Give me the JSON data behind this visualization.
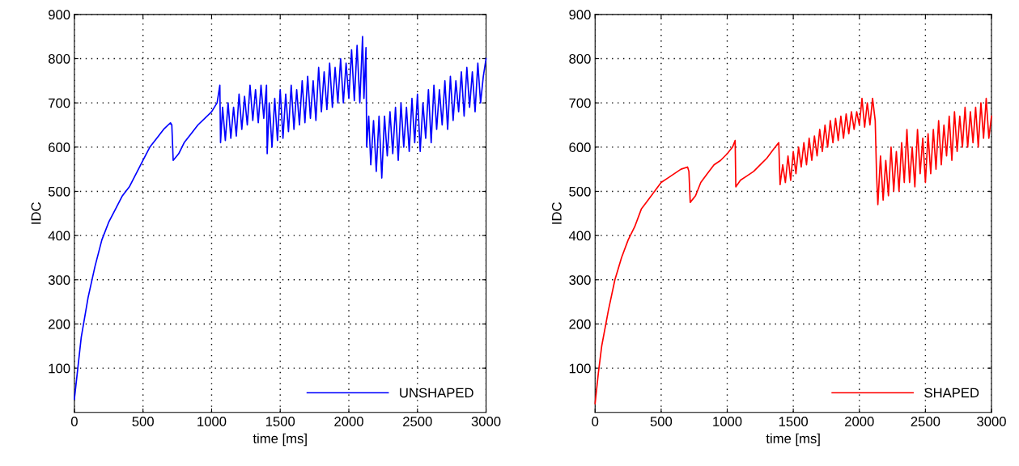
{
  "chart_data": [
    {
      "type": "line",
      "xlabel": "time [ms]",
      "ylabel": "IDC",
      "xlim": [
        0,
        3000
      ],
      "xticks": [
        0,
        500,
        1000,
        1500,
        2000,
        2500,
        3000
      ],
      "ylim": [
        0,
        900
      ],
      "yticks": [
        100,
        200,
        300,
        400,
        500,
        600,
        700,
        800,
        900
      ],
      "grid": true,
      "legend": "bottom right",
      "x": [
        0,
        25,
        50,
        100,
        150,
        200,
        250,
        300,
        350,
        400,
        450,
        500,
        550,
        600,
        650,
        700,
        710,
        720,
        760,
        800,
        850,
        900,
        950,
        1000,
        1040,
        1060,
        1065,
        1080,
        1100,
        1120,
        1140,
        1160,
        1180,
        1200,
        1220,
        1240,
        1260,
        1280,
        1300,
        1320,
        1340,
        1360,
        1380,
        1400,
        1405,
        1420,
        1440,
        1460,
        1480,
        1500,
        1520,
        1540,
        1560,
        1580,
        1600,
        1620,
        1640,
        1660,
        1680,
        1700,
        1720,
        1740,
        1760,
        1780,
        1800,
        1820,
        1840,
        1860,
        1880,
        1900,
        1920,
        1940,
        1960,
        1980,
        2000,
        2020,
        2040,
        2060,
        2080,
        2100,
        2110,
        2125,
        2130,
        2145,
        2160,
        2180,
        2200,
        2220,
        2240,
        2260,
        2280,
        2300,
        2320,
        2340,
        2360,
        2380,
        2400,
        2420,
        2440,
        2460,
        2480,
        2500,
        2520,
        2540,
        2560,
        2580,
        2600,
        2620,
        2640,
        2660,
        2680,
        2700,
        2720,
        2740,
        2760,
        2780,
        2800,
        2820,
        2840,
        2860,
        2880,
        2900,
        2920,
        2940,
        2960,
        2980,
        3000
      ],
      "series": [
        {
          "name": "UNSHAPED",
          "color": "#0000ff",
          "values": [
            30,
            100,
            170,
            260,
            330,
            390,
            430,
            460,
            490,
            510,
            540,
            570,
            600,
            620,
            640,
            655,
            650,
            570,
            585,
            610,
            630,
            650,
            665,
            680,
            700,
            740,
            610,
            690,
            615,
            700,
            620,
            690,
            625,
            720,
            640,
            715,
            650,
            740,
            660,
            730,
            655,
            740,
            665,
            740,
            585,
            700,
            600,
            710,
            615,
            730,
            620,
            720,
            635,
            740,
            640,
            730,
            650,
            750,
            655,
            760,
            665,
            750,
            660,
            780,
            680,
            770,
            685,
            790,
            690,
            780,
            700,
            800,
            700,
            790,
            710,
            820,
            705,
            830,
            700,
            850,
            710,
            825,
            600,
            670,
            560,
            660,
            545,
            670,
            530,
            670,
            580,
            680,
            585,
            690,
            570,
            700,
            600,
            690,
            590,
            710,
            610,
            720,
            590,
            700,
            620,
            730,
            610,
            740,
            640,
            730,
            650,
            750,
            640,
            760,
            660,
            750,
            680,
            770,
            670,
            780,
            690,
            770,
            680,
            790,
            700,
            760,
            800
          ]
        }
      ]
    },
    {
      "type": "line",
      "xlabel": "time [ms]",
      "ylabel": "IDC",
      "xlim": [
        0,
        3000
      ],
      "xticks": [
        0,
        500,
        1000,
        1500,
        2000,
        2500,
        3000
      ],
      "ylim": [
        0,
        900
      ],
      "yticks": [
        100,
        200,
        300,
        400,
        500,
        600,
        700,
        800,
        900
      ],
      "grid": true,
      "legend": "bottom right",
      "x": [
        0,
        25,
        50,
        100,
        150,
        200,
        250,
        300,
        350,
        400,
        450,
        500,
        550,
        600,
        650,
        700,
        710,
        720,
        760,
        800,
        850,
        900,
        950,
        1000,
        1040,
        1060,
        1065,
        1100,
        1150,
        1200,
        1250,
        1300,
        1350,
        1390,
        1400,
        1420,
        1440,
        1460,
        1480,
        1500,
        1520,
        1540,
        1560,
        1580,
        1600,
        1620,
        1640,
        1660,
        1680,
        1700,
        1720,
        1740,
        1760,
        1780,
        1800,
        1820,
        1840,
        1860,
        1880,
        1900,
        1920,
        1940,
        1960,
        1980,
        2000,
        2020,
        2040,
        2060,
        2080,
        2100,
        2120,
        2130,
        2140,
        2160,
        2180,
        2200,
        2220,
        2240,
        2260,
        2280,
        2300,
        2320,
        2340,
        2360,
        2380,
        2400,
        2420,
        2440,
        2460,
        2480,
        2500,
        2520,
        2540,
        2560,
        2580,
        2600,
        2620,
        2640,
        2660,
        2680,
        2700,
        2720,
        2740,
        2760,
        2780,
        2800,
        2820,
        2840,
        2860,
        2880,
        2900,
        2920,
        2940,
        2960,
        2980,
        3000
      ],
      "series": [
        {
          "name": "SHAPED",
          "color": "#ff0000",
          "values": [
            20,
            90,
            150,
            230,
            300,
            350,
            390,
            420,
            460,
            480,
            500,
            520,
            530,
            540,
            550,
            555,
            545,
            475,
            490,
            520,
            540,
            560,
            570,
            585,
            600,
            615,
            510,
            525,
            535,
            545,
            560,
            575,
            595,
            610,
            515,
            560,
            520,
            580,
            525,
            590,
            540,
            600,
            555,
            610,
            560,
            620,
            570,
            625,
            580,
            640,
            590,
            650,
            600,
            660,
            610,
            665,
            615,
            670,
            620,
            675,
            630,
            680,
            640,
            680,
            650,
            710,
            645,
            700,
            650,
            710,
            660,
            540,
            470,
            580,
            480,
            570,
            490,
            600,
            500,
            590,
            500,
            610,
            520,
            640,
            520,
            600,
            510,
            640,
            540,
            620,
            520,
            630,
            540,
            640,
            550,
            660,
            560,
            650,
            580,
            670,
            570,
            680,
            590,
            670,
            600,
            690,
            600,
            680,
            610,
            690,
            600,
            700,
            620,
            710,
            620,
            670
          ]
        }
      ]
    }
  ]
}
